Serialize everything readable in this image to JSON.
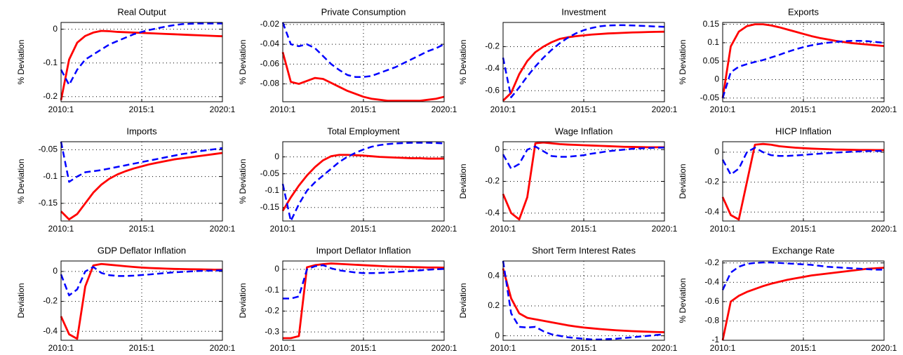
{
  "chart_data": [
    {
      "type": "line",
      "title": "Real Output",
      "y_label": "% Deviation",
      "grid": true,
      "categories": [
        "2010:1",
        null,
        null,
        null,
        null,
        null,
        null,
        null,
        null,
        null,
        "2015:1",
        null,
        null,
        null,
        null,
        null,
        null,
        null,
        null,
        null,
        "2020:1"
      ],
      "ylim": [
        -0.215,
        0.02
      ],
      "yticks": [
        -0.2,
        -0.1,
        0
      ],
      "series": [
        {
          "color": "#ff0000",
          "style": "solid",
          "values": [
            -0.21,
            -0.09,
            -0.04,
            -0.02,
            -0.01,
            -0.005,
            -0.006,
            -0.008,
            -0.009,
            -0.01,
            -0.011,
            -0.012,
            -0.013,
            -0.014,
            -0.015,
            -0.016,
            -0.017,
            -0.018,
            -0.019,
            -0.02,
            -0.021
          ]
        },
        {
          "color": "#0000ff",
          "style": "dashed",
          "values": [
            -0.12,
            -0.165,
            -0.12,
            -0.09,
            -0.075,
            -0.06,
            -0.045,
            -0.035,
            -0.025,
            -0.015,
            -0.008,
            -0.002,
            0.003,
            0.008,
            0.012,
            0.015,
            0.016,
            0.017,
            0.017,
            0.017,
            0.017
          ]
        }
      ]
    },
    {
      "type": "line",
      "title": "Private Consumption",
      "y_label": "% Deviation",
      "grid": true,
      "categories": [
        "2010:1",
        null,
        null,
        null,
        null,
        null,
        null,
        null,
        null,
        null,
        "2015:1",
        null,
        null,
        null,
        null,
        null,
        null,
        null,
        null,
        null,
        "2020:1"
      ],
      "ylim": [
        -0.098,
        -0.018
      ],
      "yticks": [
        -0.08,
        -0.06,
        -0.04,
        -0.02
      ],
      "series": [
        {
          "color": "#ff0000",
          "style": "solid",
          "values": [
            -0.048,
            -0.078,
            -0.08,
            -0.077,
            -0.074,
            -0.075,
            -0.079,
            -0.083,
            -0.087,
            -0.09,
            -0.093,
            -0.095,
            -0.096,
            -0.097,
            -0.097,
            -0.097,
            -0.097,
            -0.097,
            -0.096,
            -0.095,
            -0.093
          ]
        },
        {
          "color": "#0000ff",
          "style": "dashed",
          "values": [
            -0.018,
            -0.04,
            -0.042,
            -0.04,
            -0.044,
            -0.052,
            -0.06,
            -0.066,
            -0.071,
            -0.073,
            -0.073,
            -0.072,
            -0.069,
            -0.066,
            -0.063,
            -0.059,
            -0.055,
            -0.051,
            -0.047,
            -0.044,
            -0.04
          ]
        }
      ]
    },
    {
      "type": "line",
      "title": "Investment",
      "y_label": "% Deviation",
      "grid": true,
      "categories": [
        "2010:1",
        null,
        null,
        null,
        null,
        null,
        null,
        null,
        null,
        null,
        "2015:1",
        null,
        null,
        null,
        null,
        null,
        null,
        null,
        null,
        null,
        "2020:1"
      ],
      "ylim": [
        -0.7,
        0.02
      ],
      "yticks": [
        -0.6,
        -0.4,
        -0.2
      ],
      "series": [
        {
          "color": "#ff0000",
          "style": "solid",
          "values": [
            -0.69,
            -0.62,
            -0.45,
            -0.33,
            -0.25,
            -0.2,
            -0.16,
            -0.13,
            -0.115,
            -0.105,
            -0.097,
            -0.09,
            -0.085,
            -0.08,
            -0.077,
            -0.074,
            -0.071,
            -0.069,
            -0.067,
            -0.065,
            -0.064
          ]
        },
        {
          "color": "#0000ff",
          "style": "dashed",
          "values": [
            -0.3,
            -0.66,
            -0.57,
            -0.47,
            -0.38,
            -0.3,
            -0.23,
            -0.17,
            -0.12,
            -0.08,
            -0.05,
            -0.03,
            -0.015,
            -0.008,
            -0.005,
            -0.005,
            -0.007,
            -0.01,
            -0.013,
            -0.017,
            -0.02
          ]
        }
      ]
    },
    {
      "type": "line",
      "title": "Exports",
      "y_label": "% Deviation",
      "grid": true,
      "categories": [
        "2010:1",
        null,
        null,
        null,
        null,
        null,
        null,
        null,
        null,
        null,
        "2015:1",
        null,
        null,
        null,
        null,
        null,
        null,
        null,
        null,
        null,
        "2020:1"
      ],
      "ylim": [
        -0.06,
        0.155
      ],
      "yticks": [
        -0.05,
        0,
        0.05,
        0.1,
        0.15
      ],
      "series": [
        {
          "color": "#ff0000",
          "style": "solid",
          "values": [
            -0.05,
            0.09,
            0.13,
            0.145,
            0.15,
            0.15,
            0.147,
            0.142,
            0.136,
            0.13,
            0.124,
            0.118,
            0.113,
            0.109,
            0.105,
            0.102,
            0.099,
            0.097,
            0.095,
            0.093,
            0.091
          ]
        },
        {
          "color": "#0000ff",
          "style": "dashed",
          "values": [
            -0.05,
            0.02,
            0.035,
            0.042,
            0.048,
            0.053,
            0.06,
            0.067,
            0.075,
            0.082,
            0.088,
            0.093,
            0.097,
            0.1,
            0.102,
            0.104,
            0.105,
            0.105,
            0.104,
            0.102,
            0.1
          ]
        }
      ]
    },
    {
      "type": "line",
      "title": "Imports",
      "y_label": "% Deviation",
      "grid": true,
      "categories": [
        "2010:1",
        null,
        null,
        null,
        null,
        null,
        null,
        null,
        null,
        null,
        "2015:1",
        null,
        null,
        null,
        null,
        null,
        null,
        null,
        null,
        null,
        "2020:1"
      ],
      "ylim": [
        -0.183,
        -0.035
      ],
      "yticks": [
        -0.15,
        -0.1,
        -0.05
      ],
      "series": [
        {
          "color": "#ff0000",
          "style": "solid",
          "values": [
            -0.165,
            -0.18,
            -0.17,
            -0.15,
            -0.13,
            -0.115,
            -0.104,
            -0.096,
            -0.09,
            -0.085,
            -0.081,
            -0.077,
            -0.074,
            -0.071,
            -0.068,
            -0.066,
            -0.064,
            -0.062,
            -0.06,
            -0.058,
            -0.056
          ]
        },
        {
          "color": "#0000ff",
          "style": "dashed",
          "values": [
            -0.035,
            -0.11,
            -0.1,
            -0.092,
            -0.09,
            -0.088,
            -0.085,
            -0.082,
            -0.079,
            -0.076,
            -0.073,
            -0.07,
            -0.067,
            -0.064,
            -0.061,
            -0.058,
            -0.056,
            -0.053,
            -0.051,
            -0.049,
            -0.047
          ]
        }
      ]
    },
    {
      "type": "line",
      "title": "Total Employment",
      "y_label": "% Deviation",
      "grid": true,
      "categories": [
        "2010:1",
        null,
        null,
        null,
        null,
        null,
        null,
        null,
        null,
        null,
        "2015:1",
        null,
        null,
        null,
        null,
        null,
        null,
        null,
        null,
        null,
        "2020:1"
      ],
      "ylim": [
        -0.19,
        0.045
      ],
      "yticks": [
        -0.15,
        -0.1,
        -0.05,
        0
      ],
      "series": [
        {
          "color": "#ff0000",
          "style": "solid",
          "values": [
            -0.16,
            -0.12,
            -0.085,
            -0.055,
            -0.03,
            -0.01,
            0.002,
            0.006,
            0.006,
            0.005,
            0.004,
            0.002,
            0.0,
            -0.001,
            -0.002,
            -0.003,
            -0.004,
            -0.004,
            -0.005,
            -0.005,
            -0.005
          ]
        },
        {
          "color": "#0000ff",
          "style": "dashed",
          "values": [
            -0.08,
            -0.19,
            -0.14,
            -0.1,
            -0.075,
            -0.055,
            -0.035,
            -0.015,
            0.0,
            0.012,
            0.022,
            0.03,
            0.035,
            0.038,
            0.04,
            0.041,
            0.042,
            0.042,
            0.042,
            0.041,
            0.04
          ]
        }
      ]
    },
    {
      "type": "line",
      "title": "Wage Inflation",
      "y_label": "Deviation",
      "grid": true,
      "categories": [
        "2010:1",
        null,
        null,
        null,
        null,
        null,
        null,
        null,
        null,
        null,
        "2015:1",
        null,
        null,
        null,
        null,
        null,
        null,
        null,
        null,
        null,
        "2020:1"
      ],
      "ylim": [
        -0.45,
        0.05
      ],
      "yticks": [
        -0.4,
        -0.2,
        0
      ],
      "series": [
        {
          "color": "#ff0000",
          "style": "solid",
          "values": [
            -0.28,
            -0.4,
            -0.44,
            -0.3,
            0.04,
            0.045,
            0.04,
            0.035,
            0.032,
            0.03,
            0.028,
            0.026,
            0.024,
            0.022,
            0.02,
            0.018,
            0.017,
            0.016,
            0.015,
            0.015,
            0.015
          ]
        },
        {
          "color": "#0000ff",
          "style": "dashed",
          "values": [
            -0.03,
            -0.12,
            -0.09,
            0.0,
            0.02,
            -0.01,
            -0.04,
            -0.045,
            -0.045,
            -0.04,
            -0.035,
            -0.025,
            -0.018,
            -0.01,
            -0.005,
            0.0,
            0.005,
            0.008,
            0.01,
            0.012,
            0.013
          ]
        }
      ]
    },
    {
      "type": "line",
      "title": "HICP Inflation",
      "y_label": "Deviation",
      "grid": true,
      "categories": [
        "2010:1",
        null,
        null,
        null,
        null,
        null,
        null,
        null,
        null,
        null,
        "2015:1",
        null,
        null,
        null,
        null,
        null,
        null,
        null,
        null,
        null,
        "2020:1"
      ],
      "ylim": [
        -0.46,
        0.07
      ],
      "yticks": [
        -0.4,
        -0.2,
        0
      ],
      "series": [
        {
          "color": "#ff0000",
          "style": "solid",
          "values": [
            -0.3,
            -0.42,
            -0.45,
            -0.2,
            0.05,
            0.055,
            0.05,
            0.04,
            0.035,
            0.03,
            0.027,
            0.024,
            0.022,
            0.02,
            0.018,
            0.017,
            0.016,
            0.015,
            0.015,
            0.014,
            0.014
          ]
        },
        {
          "color": "#0000ff",
          "style": "dashed",
          "values": [
            -0.05,
            -0.15,
            -0.11,
            0.0,
            0.03,
            0.0,
            -0.02,
            -0.025,
            -0.025,
            -0.022,
            -0.018,
            -0.014,
            -0.01,
            -0.006,
            -0.003,
            0.0,
            0.003,
            0.005,
            0.007,
            0.008,
            0.009
          ]
        }
      ]
    },
    {
      "type": "line",
      "title": "GDP Deflator Inflation",
      "y_label": "Deviation",
      "grid": true,
      "categories": [
        "2010:1",
        null,
        null,
        null,
        null,
        null,
        null,
        null,
        null,
        null,
        "2015:1",
        null,
        null,
        null,
        null,
        null,
        null,
        null,
        null,
        null,
        "2020:1"
      ],
      "ylim": [
        -0.46,
        0.07
      ],
      "yticks": [
        -0.4,
        -0.2,
        0
      ],
      "series": [
        {
          "color": "#ff0000",
          "style": "solid",
          "values": [
            -0.3,
            -0.42,
            -0.45,
            -0.1,
            0.04,
            0.05,
            0.045,
            0.04,
            0.035,
            0.03,
            0.026,
            0.023,
            0.021,
            0.019,
            0.017,
            0.016,
            0.015,
            0.014,
            0.013,
            0.012,
            0.012
          ]
        },
        {
          "color": "#0000ff",
          "style": "dashed",
          "values": [
            -0.02,
            -0.16,
            -0.12,
            0.0,
            0.03,
            -0.01,
            -0.025,
            -0.03,
            -0.03,
            -0.028,
            -0.024,
            -0.02,
            -0.015,
            -0.01,
            -0.006,
            -0.003,
            0.0,
            0.003,
            0.005,
            0.006,
            0.007
          ]
        }
      ]
    },
    {
      "type": "line",
      "title": "Import Deflator Inflation",
      "y_label": "Deviation",
      "grid": true,
      "categories": [
        "2010:1",
        null,
        null,
        null,
        null,
        null,
        null,
        null,
        null,
        null,
        "2015:1",
        null,
        null,
        null,
        null,
        null,
        null,
        null,
        null,
        null,
        "2020:1"
      ],
      "ylim": [
        -0.34,
        0.04
      ],
      "yticks": [
        -0.3,
        -0.2,
        -0.1,
        0
      ],
      "series": [
        {
          "color": "#ff0000",
          "style": "solid",
          "values": [
            -0.33,
            -0.33,
            -0.32,
            0.01,
            0.02,
            0.025,
            0.028,
            0.026,
            0.024,
            0.022,
            0.02,
            0.018,
            0.016,
            0.014,
            0.013,
            0.012,
            0.011,
            0.01,
            0.009,
            0.009,
            0.008
          ]
        },
        {
          "color": "#0000ff",
          "style": "dashed",
          "values": [
            -0.14,
            -0.14,
            -0.13,
            0.0,
            0.015,
            0.02,
            0.005,
            -0.005,
            -0.01,
            -0.015,
            -0.018,
            -0.018,
            -0.017,
            -0.015,
            -0.013,
            -0.01,
            -0.008,
            -0.005,
            -0.002,
            0.0,
            0.002
          ]
        }
      ]
    },
    {
      "type": "line",
      "title": "Short Term Interest Rates",
      "y_label": "Deviation",
      "grid": true,
      "categories": [
        "2010:1",
        null,
        null,
        null,
        null,
        null,
        null,
        null,
        null,
        null,
        "2015:1",
        null,
        null,
        null,
        null,
        null,
        null,
        null,
        null,
        null,
        "2020:1"
      ],
      "ylim": [
        -0.03,
        0.5
      ],
      "yticks": [
        0,
        0.2,
        0.4
      ],
      "series": [
        {
          "color": "#ff0000",
          "style": "solid",
          "values": [
            0.45,
            0.25,
            0.15,
            0.12,
            0.11,
            0.1,
            0.09,
            0.08,
            0.07,
            0.062,
            0.055,
            0.05,
            0.045,
            0.041,
            0.037,
            0.034,
            0.031,
            0.029,
            0.027,
            0.025,
            0.024
          ]
        },
        {
          "color": "#0000ff",
          "style": "dashed",
          "values": [
            0.5,
            0.15,
            0.06,
            0.055,
            0.06,
            0.03,
            0.01,
            0.0,
            -0.01,
            -0.015,
            -0.02,
            -0.025,
            -0.025,
            -0.022,
            -0.02,
            -0.015,
            -0.01,
            -0.005,
            0.0,
            0.005,
            0.01
          ]
        }
      ]
    },
    {
      "type": "line",
      "title": "Exchange Rate",
      "y_label": "% Deviation",
      "grid": true,
      "categories": [
        "2010:1",
        null,
        null,
        null,
        null,
        null,
        null,
        null,
        null,
        null,
        "2015:1",
        null,
        null,
        null,
        null,
        null,
        null,
        null,
        null,
        null,
        "2020:1"
      ],
      "ylim": [
        -1,
        -0.18
      ],
      "yticks": [
        -1,
        -0.8,
        -0.6,
        -0.4,
        -0.2
      ],
      "series": [
        {
          "color": "#ff0000",
          "style": "solid",
          "values": [
            -1.0,
            -0.6,
            -0.54,
            -0.5,
            -0.47,
            -0.44,
            -0.415,
            -0.395,
            -0.375,
            -0.36,
            -0.345,
            -0.33,
            -0.32,
            -0.31,
            -0.3,
            -0.29,
            -0.28,
            -0.27,
            -0.26,
            -0.255,
            -0.25
          ]
        },
        {
          "color": "#0000ff",
          "style": "dashed",
          "values": [
            -0.48,
            -0.3,
            -0.24,
            -0.21,
            -0.2,
            -0.195,
            -0.195,
            -0.2,
            -0.205,
            -0.21,
            -0.215,
            -0.22,
            -0.23,
            -0.24,
            -0.245,
            -0.25,
            -0.255,
            -0.26,
            -0.265,
            -0.27,
            -0.27
          ]
        }
      ]
    }
  ]
}
